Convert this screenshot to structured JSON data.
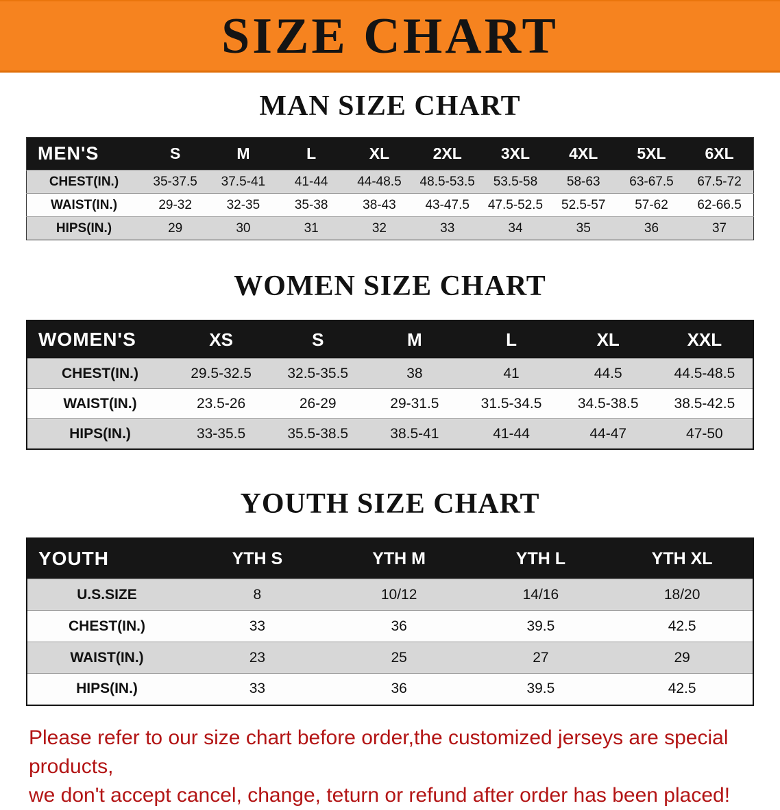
{
  "banner": {
    "title": "SIZE CHART",
    "bg_color": "#f6831f",
    "text_color": "#141414"
  },
  "sections": [
    {
      "heading": "MAN SIZE CHART",
      "table": {
        "label": "MEN'S",
        "columns": [
          "S",
          "M",
          "L",
          "XL",
          "2XL",
          "3XL",
          "4XL",
          "5XL",
          "6XL"
        ],
        "rows": [
          {
            "label": "CHEST(IN.)",
            "values": [
              "35-37.5",
              "37.5-41",
              "41-44",
              "44-48.5",
              "48.5-53.5",
              "53.5-58",
              "58-63",
              "63-67.5",
              "67.5-72"
            ]
          },
          {
            "label": "WAIST(IN.)",
            "values": [
              "29-32",
              "32-35",
              "35-38",
              "38-43",
              "43-47.5",
              "47.5-52.5",
              "52.5-57",
              "57-62",
              "62-66.5"
            ]
          },
          {
            "label": "HIPS(IN.)",
            "values": [
              "29",
              "30",
              "31",
              "32",
              "33",
              "34",
              "35",
              "36",
              "37"
            ]
          }
        ]
      }
    },
    {
      "heading": "WOMEN SIZE CHART",
      "table": {
        "label": "WOMEN'S",
        "columns": [
          "XS",
          "S",
          "M",
          "L",
          "XL",
          "XXL"
        ],
        "rows": [
          {
            "label": "CHEST(IN.)",
            "values": [
              "29.5-32.5",
              "32.5-35.5",
              "38",
              "41",
              "44.5",
              "44.5-48.5"
            ]
          },
          {
            "label": "WAIST(IN.)",
            "values": [
              "23.5-26",
              "26-29",
              "29-31.5",
              "31.5-34.5",
              "34.5-38.5",
              "38.5-42.5"
            ]
          },
          {
            "label": "HIPS(IN.)",
            "values": [
              "33-35.5",
              "35.5-38.5",
              "38.5-41",
              "41-44",
              "44-47",
              "47-50"
            ]
          }
        ]
      }
    },
    {
      "heading": "YOUTH SIZE CHART",
      "table": {
        "label": "YOUTH",
        "columns": [
          "YTH S",
          "YTH M",
          "YTH L",
          "YTH XL"
        ],
        "rows": [
          {
            "label": "U.S.SIZE",
            "values": [
              "8",
              "10/12",
              "14/16",
              "18/20"
            ]
          },
          {
            "label": "CHEST(IN.)",
            "values": [
              "33",
              "36",
              "39.5",
              "42.5"
            ]
          },
          {
            "label": "WAIST(IN.)",
            "values": [
              "23",
              "25",
              "27",
              "29"
            ]
          },
          {
            "label": "HIPS(IN.)",
            "values": [
              "33",
              "36",
              "39.5",
              "42.5"
            ]
          }
        ]
      }
    }
  ],
  "footer": {
    "line1": "Please refer to our size chart before order,the customized jerseys are special products,",
    "line2": "we don't accept cancel, change, teturn or refund after order has been placed!",
    "text_color": "#b31515"
  }
}
